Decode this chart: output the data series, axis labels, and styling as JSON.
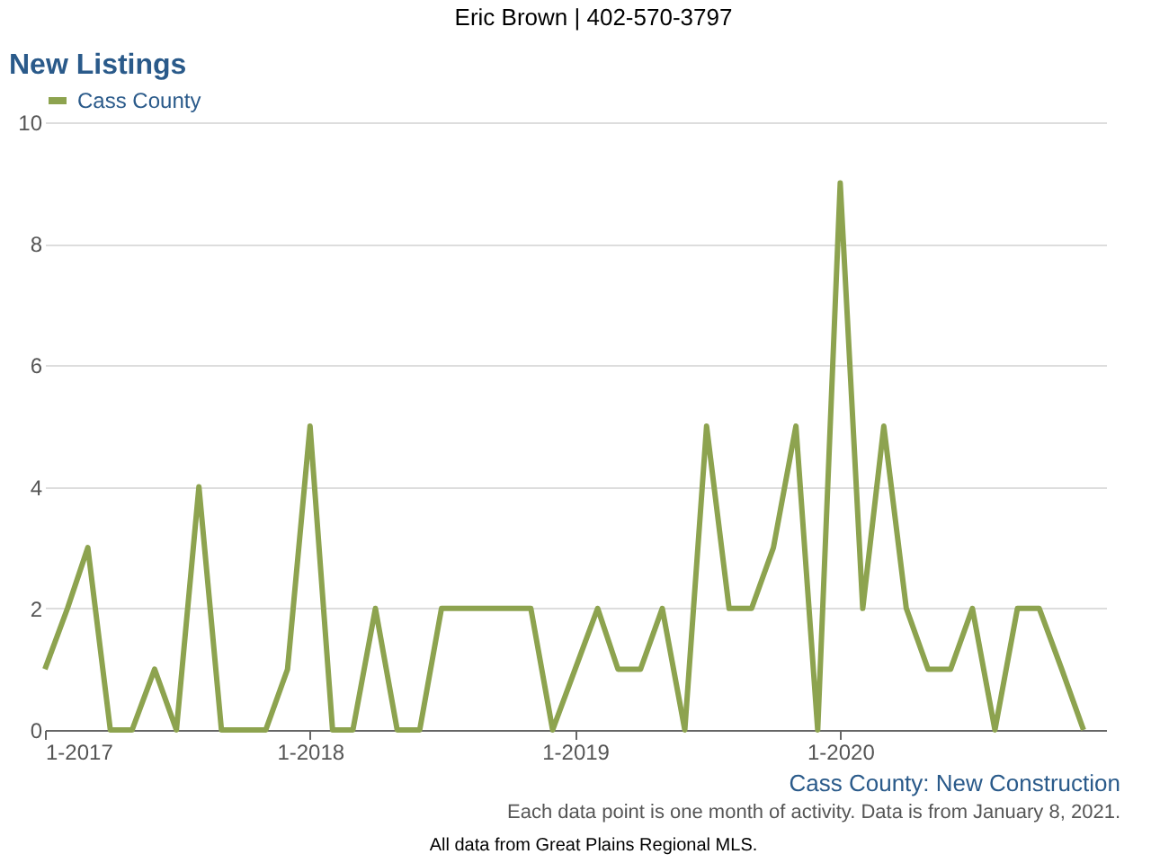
{
  "chart_data": {
    "type": "line",
    "title": "New Listings",
    "x": [
      "2017-01",
      "2017-02",
      "2017-03",
      "2017-04",
      "2017-05",
      "2017-06",
      "2017-07",
      "2017-08",
      "2017-09",
      "2017-10",
      "2017-11",
      "2017-12",
      "2018-01",
      "2018-02",
      "2018-03",
      "2018-04",
      "2018-05",
      "2018-06",
      "2018-07",
      "2018-08",
      "2018-09",
      "2018-10",
      "2018-11",
      "2018-12",
      "2019-01",
      "2019-02",
      "2019-03",
      "2019-04",
      "2019-05",
      "2019-06",
      "2019-07",
      "2019-08",
      "2019-09",
      "2019-10",
      "2019-11",
      "2019-12",
      "2020-01",
      "2020-02",
      "2020-03",
      "2020-04",
      "2020-05",
      "2020-06",
      "2020-07",
      "2020-08",
      "2020-09",
      "2020-10",
      "2020-11",
      "2020-12"
    ],
    "series": [
      {
        "name": "Cass County",
        "color": "#8da34f",
        "values": [
          1,
          2,
          3,
          0,
          0,
          1,
          0,
          4,
          0,
          0,
          0,
          1,
          5,
          0,
          0,
          2,
          0,
          0,
          2,
          2,
          2,
          2,
          2,
          0,
          1,
          2,
          1,
          1,
          2,
          0,
          5,
          2,
          2,
          3,
          5,
          0,
          9,
          2,
          5,
          2,
          1,
          1,
          2,
          0,
          2,
          2,
          1,
          0
        ]
      }
    ],
    "xlim": [
      "2017-01",
      "2021-01"
    ],
    "xticks": [
      {
        "value": "2017-01",
        "label": "1-2017"
      },
      {
        "value": "2018-01",
        "label": "1-2018"
      },
      {
        "value": "2019-01",
        "label": "1-2019"
      },
      {
        "value": "2020-01",
        "label": "1-2020"
      }
    ],
    "ylim": [
      0,
      10
    ],
    "yticks": [
      0,
      2,
      4,
      6,
      8,
      10
    ],
    "grid": "y",
    "legend": "top",
    "marker": "none",
    "line_style": "solid",
    "annotations": [
      "Eric Brown | 402-570-3797",
      "Cass County: New Construction",
      "Each data point is one month of activity. Data is from January 8, 2021.",
      "All data from Great Plains Regional MLS."
    ]
  }
}
